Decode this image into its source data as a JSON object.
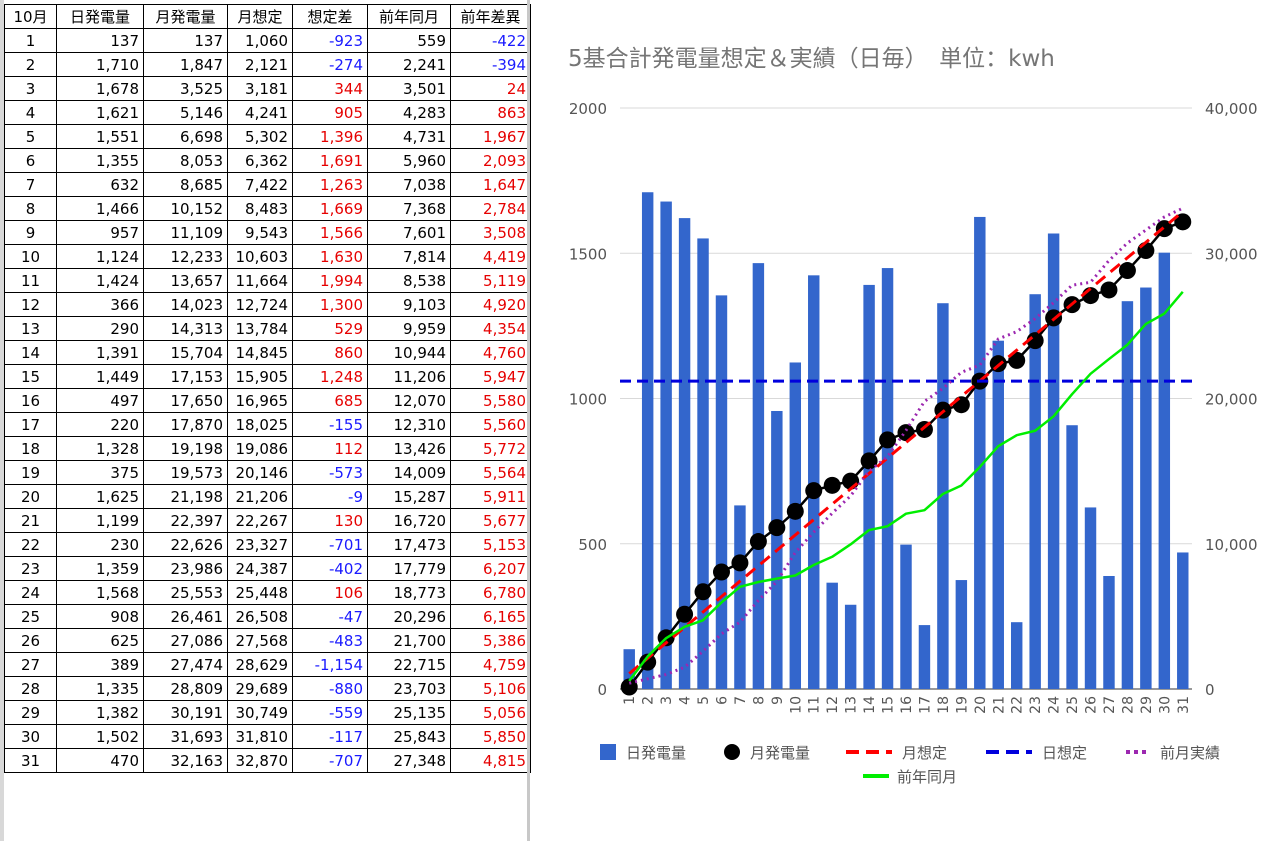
{
  "table": {
    "headers": [
      "10月",
      "日発電量",
      "月発電量",
      "月想定",
      "想定差",
      "前年同月",
      "前年差異"
    ],
    "rows": [
      [
        "1",
        "137",
        "137",
        "1,060",
        "-923",
        "559",
        "-422"
      ],
      [
        "2",
        "1,710",
        "1,847",
        "2,121",
        "-274",
        "2,241",
        "-394"
      ],
      [
        "3",
        "1,678",
        "3,525",
        "3,181",
        "344",
        "3,501",
        "24"
      ],
      [
        "4",
        "1,621",
        "5,146",
        "4,241",
        "905",
        "4,283",
        "863"
      ],
      [
        "5",
        "1,551",
        "6,698",
        "5,302",
        "1,396",
        "4,731",
        "1,967"
      ],
      [
        "6",
        "1,355",
        "8,053",
        "6,362",
        "1,691",
        "5,960",
        "2,093"
      ],
      [
        "7",
        "632",
        "8,685",
        "7,422",
        "1,263",
        "7,038",
        "1,647"
      ],
      [
        "8",
        "1,466",
        "10,152",
        "8,483",
        "1,669",
        "7,368",
        "2,784"
      ],
      [
        "9",
        "957",
        "11,109",
        "9,543",
        "1,566",
        "7,601",
        "3,508"
      ],
      [
        "10",
        "1,124",
        "12,233",
        "10,603",
        "1,630",
        "7,814",
        "4,419"
      ],
      [
        "11",
        "1,424",
        "13,657",
        "11,664",
        "1,994",
        "8,538",
        "5,119"
      ],
      [
        "12",
        "366",
        "14,023",
        "12,724",
        "1,300",
        "9,103",
        "4,920"
      ],
      [
        "13",
        "290",
        "14,313",
        "13,784",
        "529",
        "9,959",
        "4,354"
      ],
      [
        "14",
        "1,391",
        "15,704",
        "14,845",
        "860",
        "10,944",
        "4,760"
      ],
      [
        "15",
        "1,449",
        "17,153",
        "15,905",
        "1,248",
        "11,206",
        "5,947"
      ],
      [
        "16",
        "497",
        "17,650",
        "16,965",
        "685",
        "12,070",
        "5,580"
      ],
      [
        "17",
        "220",
        "17,870",
        "18,025",
        "-155",
        "12,310",
        "5,560"
      ],
      [
        "18",
        "1,328",
        "19,198",
        "19,086",
        "112",
        "13,426",
        "5,772"
      ],
      [
        "19",
        "375",
        "19,573",
        "20,146",
        "-573",
        "14,009",
        "5,564"
      ],
      [
        "20",
        "1,625",
        "21,198",
        "21,206",
        "-9",
        "15,287",
        "5,911"
      ],
      [
        "21",
        "1,199",
        "22,397",
        "22,267",
        "130",
        "16,720",
        "5,677"
      ],
      [
        "22",
        "230",
        "22,626",
        "23,327",
        "-701",
        "17,473",
        "5,153"
      ],
      [
        "23",
        "1,359",
        "23,986",
        "24,387",
        "-402",
        "17,779",
        "6,207"
      ],
      [
        "24",
        "1,568",
        "25,553",
        "25,448",
        "106",
        "18,773",
        "6,780"
      ],
      [
        "25",
        "908",
        "26,461",
        "26,508",
        "-47",
        "20,296",
        "6,165"
      ],
      [
        "26",
        "625",
        "27,086",
        "27,568",
        "-483",
        "21,700",
        "5,386"
      ],
      [
        "27",
        "389",
        "27,474",
        "28,629",
        "-1,154",
        "22,715",
        "4,759"
      ],
      [
        "28",
        "1,335",
        "28,809",
        "29,689",
        "-880",
        "23,703",
        "5,106"
      ],
      [
        "29",
        "1,382",
        "30,191",
        "30,749",
        "-559",
        "25,135",
        "5,056"
      ],
      [
        "30",
        "1,502",
        "31,693",
        "31,810",
        "-117",
        "25,843",
        "5,850"
      ],
      [
        "31",
        "470",
        "32,163",
        "32,870",
        "-707",
        "27,348",
        "4,815"
      ]
    ]
  },
  "chart_data": {
    "type": "bar",
    "title": "5基合計発電量想定＆実績（日毎）　単位：kwh",
    "categories": [
      "1",
      "2",
      "3",
      "4",
      "5",
      "6",
      "7",
      "8",
      "9",
      "10",
      "11",
      "12",
      "13",
      "14",
      "15",
      "16",
      "17",
      "18",
      "19",
      "20",
      "21",
      "22",
      "23",
      "24",
      "25",
      "26",
      "27",
      "28",
      "29",
      "30",
      "31"
    ],
    "y_left": {
      "range": [
        0,
        2000
      ],
      "ticks": [
        "0",
        "500",
        "1000",
        "1500",
        "2000"
      ]
    },
    "y_right": {
      "range": [
        0,
        40000
      ],
      "ticks": [
        "0",
        "10,000",
        "20,000",
        "30,000",
        "40,000"
      ]
    },
    "grid": true,
    "legend_position": "bottom",
    "series": [
      {
        "name": "日発電量",
        "type": "bar",
        "axis": "left",
        "color": "#3366cc",
        "values": [
          137,
          1710,
          1678,
          1621,
          1551,
          1355,
          632,
          1466,
          957,
          1124,
          1424,
          366,
          290,
          1391,
          1449,
          497,
          220,
          1328,
          375,
          1625,
          1199,
          230,
          1359,
          1568,
          908,
          625,
          389,
          1335,
          1382,
          1502,
          470
        ]
      },
      {
        "name": "月発電量",
        "type": "line-markers",
        "axis": "right",
        "color": "#000000",
        "values": [
          137,
          1847,
          3525,
          5146,
          6698,
          8053,
          8685,
          10152,
          11109,
          12233,
          13657,
          14023,
          14313,
          15704,
          17153,
          17650,
          17870,
          19198,
          19573,
          21198,
          22397,
          22626,
          23986,
          25553,
          26461,
          27086,
          27474,
          28809,
          30191,
          31693,
          32163
        ]
      },
      {
        "name": "月想定",
        "type": "line-dashed",
        "axis": "right",
        "color": "#ff0000",
        "values": [
          1060,
          2121,
          3181,
          4241,
          5302,
          6362,
          7422,
          8483,
          9543,
          10603,
          11664,
          12724,
          13784,
          14845,
          15905,
          16965,
          18025,
          19086,
          20146,
          21206,
          22267,
          23327,
          24387,
          25448,
          26508,
          27568,
          28629,
          29689,
          30749,
          31810,
          32870
        ]
      },
      {
        "name": "日想定",
        "type": "line-dashed",
        "axis": "left",
        "color": "#0000dd",
        "values": [
          1060,
          1060,
          1060,
          1060,
          1060,
          1060,
          1060,
          1060,
          1060,
          1060,
          1060,
          1060,
          1060,
          1060,
          1060,
          1060,
          1060,
          1060,
          1060,
          1060,
          1060,
          1060,
          1060,
          1060,
          1060,
          1060,
          1060,
          1060,
          1060,
          1060,
          1060
        ]
      },
      {
        "name": "前月実績",
        "type": "line-dotted",
        "axis": "right",
        "color": "#9c27b0",
        "values": [
          400,
          700,
          1000,
          1500,
          2600,
          3800,
          4600,
          6100,
          7400,
          9400,
          10800,
          12100,
          13300,
          15000,
          16000,
          17800,
          19800,
          20700,
          21800,
          22300,
          24100,
          24600,
          25500,
          26600,
          27800,
          28000,
          29500,
          30700,
          31600,
          32500,
          33100
        ]
      },
      {
        "name": "前年同月",
        "type": "line",
        "axis": "right",
        "color": "#00ee00",
        "values": [
          559,
          2241,
          3501,
          4283,
          4731,
          5960,
          7038,
          7368,
          7601,
          7814,
          8538,
          9103,
          9959,
          10944,
          11206,
          12070,
          12310,
          13426,
          14009,
          15287,
          16720,
          17473,
          17779,
          18773,
          20296,
          21700,
          22715,
          23703,
          25135,
          25843,
          27348
        ]
      }
    ]
  }
}
